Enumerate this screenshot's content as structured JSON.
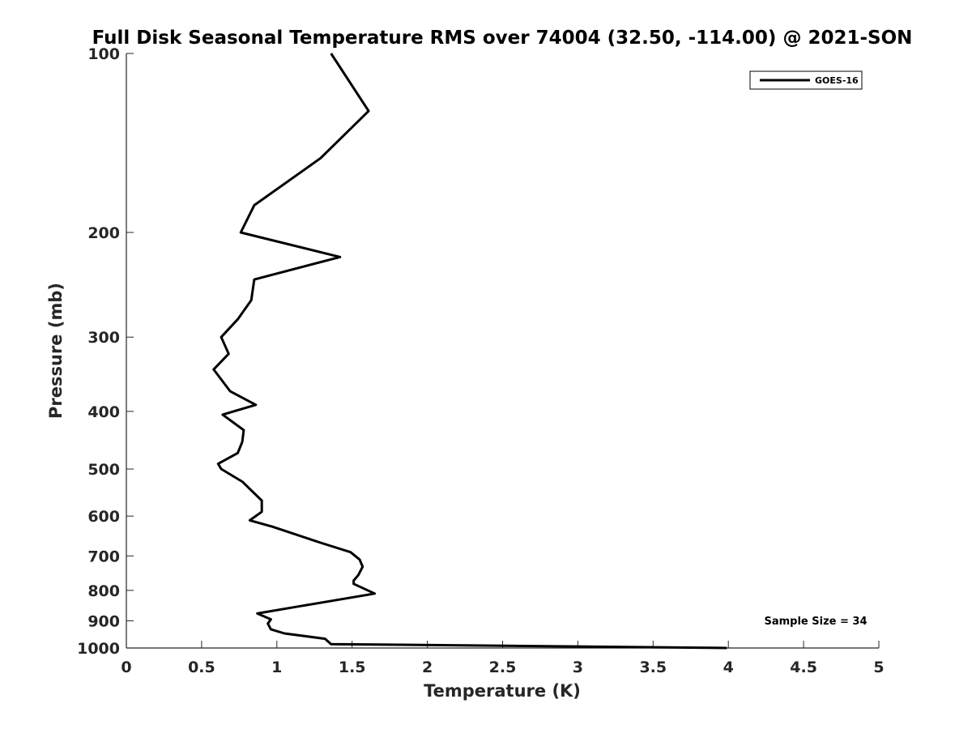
{
  "chart_data": {
    "type": "line",
    "title": "Full Disk Seasonal Temperature RMS over 74004 (32.50, -114.00) @ 2021-SON",
    "xlabel": "Temperature (K)",
    "ylabel": "Pressure (mb)",
    "xlim": [
      0,
      5
    ],
    "ylim": [
      100,
      1000
    ],
    "yscale": "log",
    "y_reversed": true,
    "grid": false,
    "x_ticks": [
      0,
      0.5,
      1,
      1.5,
      2,
      2.5,
      3,
      3.5,
      4,
      4.5,
      5
    ],
    "x_tick_labels": [
      "0",
      "0.5",
      "1",
      "1.5",
      "2",
      "2.5",
      "3",
      "3.5",
      "4",
      "4.5",
      "5"
    ],
    "y_ticks": [
      100,
      200,
      300,
      400,
      500,
      600,
      700,
      800,
      900,
      1000
    ],
    "y_tick_labels": [
      "100",
      "200",
      "300",
      "400",
      "500",
      "600",
      "700",
      "800",
      "900",
      "1000"
    ],
    "legend": {
      "position": "top-right",
      "entries": [
        "GOES-16"
      ]
    },
    "annotation": "Sample Size = 34",
    "series": [
      {
        "name": "GOES-16",
        "color": "#000000",
        "x": [
          1.36,
          1.61,
          1.29,
          0.85,
          0.76,
          1.42,
          0.85,
          0.83,
          0.74,
          0.63,
          0.68,
          0.58,
          0.69,
          0.86,
          0.64,
          0.78,
          0.77,
          0.74,
          0.61,
          0.63,
          0.77,
          0.9,
          0.9,
          0.82,
          0.97,
          1.29,
          1.49,
          1.55,
          1.57,
          1.54,
          1.51,
          1.51,
          1.65,
          1.16,
          0.87,
          0.96,
          0.94,
          0.96,
          1.05,
          1.32,
          1.36,
          3.99
        ],
        "y": [
          100,
          125,
          150,
          180,
          200,
          220,
          240,
          260,
          280,
          300,
          320,
          340,
          370,
          390,
          405,
          430,
          450,
          470,
          490,
          500,
          525,
          565,
          590,
          610,
          625,
          665,
          690,
          710,
          730,
          755,
          770,
          780,
          810,
          850,
          875,
          895,
          910,
          930,
          945,
          965,
          985,
          1000
        ]
      }
    ]
  }
}
